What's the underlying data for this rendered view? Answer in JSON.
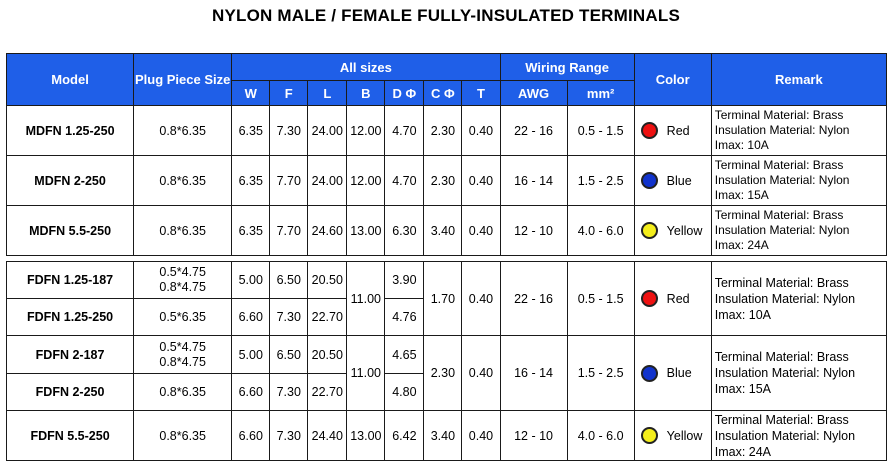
{
  "title": "NYLON MALE / FEMALE FULLY-INSULATED TERMINALS",
  "headers": {
    "model": "Model",
    "plug": "Plug Piece Size",
    "all_sizes": "All sizes",
    "wiring_range": "Wiring Range",
    "color": "Color",
    "remark": "Remark",
    "W": "W",
    "F": "F",
    "L": "L",
    "B": "B",
    "D": "D Φ",
    "C": "C Φ",
    "T": "T",
    "AWG": "AWG",
    "mm": "mm²"
  },
  "colors": {
    "red": "#ee1111",
    "blue": "#1133cc",
    "yellow": "#f4ee1c",
    "header_bg": "#1f5fe8"
  },
  "male": [
    {
      "model": "MDFN 1.25-250",
      "plug": "0.8*6.35",
      "W": "6.35",
      "F": "7.30",
      "L": "24.00",
      "B": "12.00",
      "D": "4.70",
      "C": "2.30",
      "T": "0.40",
      "AWG": "22 - 16",
      "mm": "0.5 - 1.5",
      "color": "Red",
      "remark": [
        "Terminal Material: Brass",
        "Insulation Material: Nylon",
        "Imax: 10A"
      ]
    },
    {
      "model": "MDFN 2-250",
      "plug": "0.8*6.35",
      "W": "6.35",
      "F": "7.70",
      "L": "24.00",
      "B": "12.00",
      "D": "4.70",
      "C": "2.30",
      "T": "0.40",
      "AWG": "16 - 14",
      "mm": "1.5 - 2.5",
      "color": "Blue",
      "remark": [
        "Terminal Material: Brass",
        "Insulation Material: Nylon",
        "Imax: 15A"
      ]
    },
    {
      "model": "MDFN 5.5-250",
      "plug": "0.8*6.35",
      "W": "6.35",
      "F": "7.70",
      "L": "24.60",
      "B": "13.00",
      "D": "6.30",
      "C": "3.40",
      "T": "0.40",
      "AWG": "12 - 10",
      "mm": "4.0 - 6.0",
      "color": "Yellow",
      "remark": [
        "Terminal Material: Brass",
        "Insulation Material: Nylon",
        "Imax: 24A"
      ]
    }
  ],
  "female": {
    "g1": {
      "r1": {
        "model": "FDFN 1.25-187",
        "plug1": "0.5*4.75",
        "plug2": "0.8*4.75",
        "W": "5.00",
        "F": "6.50",
        "L": "20.50",
        "D": "3.90"
      },
      "r2": {
        "model": "FDFN 1.25-250",
        "plug": "0.5*6.35",
        "W": "6.60",
        "F": "7.30",
        "L": "22.70",
        "D": "4.76"
      },
      "B": "11.00",
      "C": "1.70",
      "T": "0.40",
      "AWG": "22 - 16",
      "mm": "0.5 - 1.5",
      "color": "Red",
      "remark": [
        "Terminal Material: Brass",
        "Insulation Material: Nylon",
        "Imax: 10A"
      ]
    },
    "g2": {
      "r1": {
        "model": "FDFN 2-187",
        "plug1": "0.5*4.75",
        "plug2": "0.8*4.75",
        "W": "5.00",
        "F": "6.50",
        "L": "20.50",
        "D": "4.65"
      },
      "r2": {
        "model": "FDFN 2-250",
        "plug": "0.8*6.35",
        "W": "6.60",
        "F": "7.30",
        "L": "22.70",
        "D": "4.80"
      },
      "B": "11.00",
      "C": "2.30",
      "T": "0.40",
      "AWG": "16 - 14",
      "mm": "1.5 - 2.5",
      "color": "Blue",
      "remark": [
        "Terminal Material: Brass",
        "Insulation Material: Nylon",
        "Imax: 15A"
      ]
    },
    "g3": {
      "model": "FDFN 5.5-250",
      "plug": "0.8*6.35",
      "W": "6.60",
      "F": "7.30",
      "L": "24.40",
      "B": "13.00",
      "D": "6.42",
      "C": "3.40",
      "T": "0.40",
      "AWG": "12 - 10",
      "mm": "4.0 - 6.0",
      "color": "Yellow",
      "remark": [
        "Terminal Material: Brass",
        "Insulation Material: Nylon",
        "Imax: 24A"
      ]
    }
  }
}
